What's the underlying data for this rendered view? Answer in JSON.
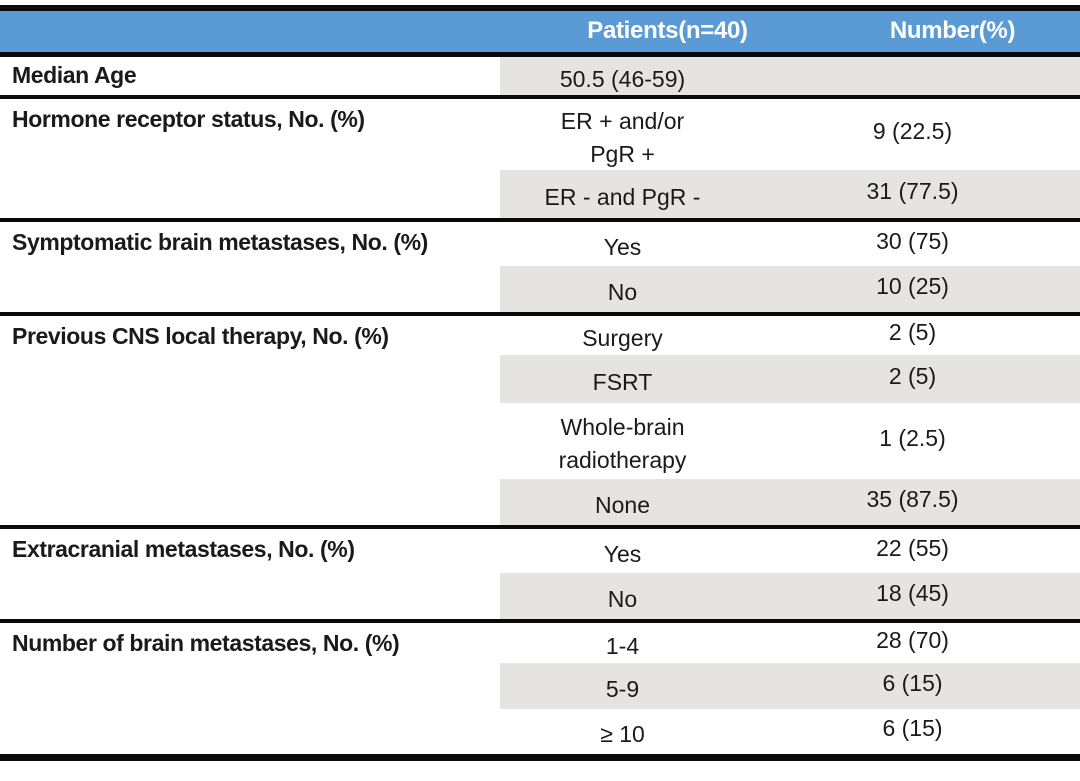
{
  "colors": {
    "header_bg": "#5B9BD5",
    "header_text": "#FFFFFF",
    "band_bg": "#E5E4E3",
    "border": "#0A0A0A",
    "body_text": "#1A1A1A"
  },
  "table": {
    "header": {
      "patients": "Patients(n=40)",
      "number": "Number(%)"
    },
    "sections": [
      {
        "label": "Median Age",
        "rows": [
          {
            "patients": "50.5 (46-59)",
            "number": ""
          }
        ]
      },
      {
        "label": "Hormone receptor status, No. (%)",
        "rows": [
          {
            "patients": "ER + and/or\nPgR +",
            "number": "9 (22.5)"
          },
          {
            "patients": "ER - and PgR -",
            "number": "31 (77.5)"
          }
        ]
      },
      {
        "label": "Symptomatic brain metastases, No. (%)",
        "rows": [
          {
            "patients": "Yes",
            "number": "30 (75)"
          },
          {
            "patients": "No",
            "number": "10 (25)"
          }
        ]
      },
      {
        "label": "Previous CNS local therapy, No. (%)",
        "rows": [
          {
            "patients": "Surgery",
            "number": "2 (5)"
          },
          {
            "patients": "FSRT",
            "number": "2 (5)"
          },
          {
            "patients": "Whole-brain\nradiotherapy",
            "number": "1 (2.5)"
          },
          {
            "patients": "None",
            "number": "35 (87.5)"
          }
        ]
      },
      {
        "label": "Extracranial metastases, No. (%)",
        "rows": [
          {
            "patients": "Yes",
            "number": "22 (55)"
          },
          {
            "patients": "No",
            "number": "18 (45)"
          }
        ]
      },
      {
        "label": "Number of brain metastases, No. (%)",
        "rows": [
          {
            "patients": "1-4",
            "number": "28 (70)"
          },
          {
            "patients": "5-9",
            "number": "6 (15)"
          },
          {
            "patients": "≥ 10",
            "number": "6 (15)"
          }
        ]
      }
    ]
  }
}
